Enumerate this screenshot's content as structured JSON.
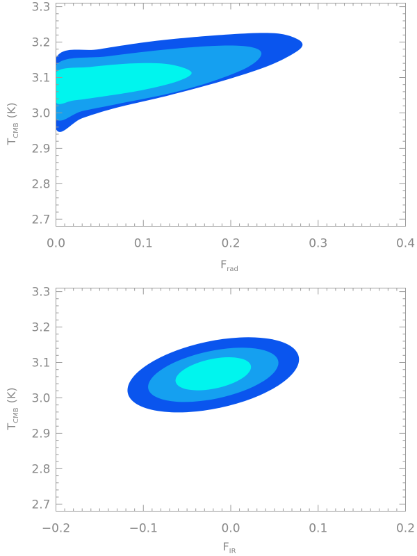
{
  "colors": {
    "level_outer": "#0a55ee",
    "level_middle": "#15a0f0",
    "level_inner": "#00f5ee",
    "axis": "#9a9a9a",
    "text": "#888888"
  },
  "chart_data": [
    {
      "type": "contour",
      "xlabel": {
        "main": "F",
        "sub": "rad"
      },
      "ylabel": {
        "main": "T",
        "sub": "CMB",
        "unit": "(K)"
      },
      "xlim": [
        0.0,
        0.4
      ],
      "ylim": [
        2.68,
        3.31
      ],
      "x_ticks": [
        "0.0",
        "0.1",
        "0.2",
        "0.3",
        "0.4"
      ],
      "y_ticks": [
        "2.7",
        "2.8",
        "2.9",
        "3.0",
        "3.1",
        "3.2",
        "3.3"
      ],
      "contours": [
        {
          "level": "outer",
          "color": "#0a55ee",
          "points": [
            [
              0.0,
              3.155
            ],
            [
              0.05,
              3.18
            ],
            [
              0.12,
              3.205
            ],
            [
              0.2,
              3.222
            ],
            [
              0.25,
              3.225
            ],
            [
              0.275,
              3.21
            ],
            [
              0.282,
              3.19
            ],
            [
              0.27,
              3.165
            ],
            [
              0.24,
              3.13
            ],
            [
              0.19,
              3.09
            ],
            [
              0.13,
              3.05
            ],
            [
              0.07,
              3.015
            ],
            [
              0.03,
              2.985
            ],
            [
              0.0,
              2.955
            ]
          ]
        },
        {
          "level": "middle",
          "color": "#15a0f0",
          "points": [
            [
              0.0,
              3.135
            ],
            [
              0.06,
              3.16
            ],
            [
              0.13,
              3.18
            ],
            [
              0.19,
              3.19
            ],
            [
              0.225,
              3.185
            ],
            [
              0.235,
              3.165
            ],
            [
              0.22,
              3.13
            ],
            [
              0.18,
              3.09
            ],
            [
              0.13,
              3.055
            ],
            [
              0.07,
              3.025
            ],
            [
              0.03,
              3.005
            ],
            [
              0.0,
              2.985
            ]
          ]
        },
        {
          "level": "inner",
          "color": "#00f5ee",
          "points": [
            [
              0.0,
              3.115
            ],
            [
              0.04,
              3.13
            ],
            [
              0.09,
              3.14
            ],
            [
              0.13,
              3.137
            ],
            [
              0.155,
              3.115
            ],
            [
              0.14,
              3.09
            ],
            [
              0.1,
              3.065
            ],
            [
              0.05,
              3.045
            ],
            [
              0.02,
              3.035
            ],
            [
              0.0,
              3.03
            ]
          ]
        }
      ]
    },
    {
      "type": "contour",
      "xlabel": {
        "main": "F",
        "sub": "IR"
      },
      "ylabel": {
        "main": "T",
        "sub": "CMB",
        "unit": "(K)"
      },
      "xlim": [
        -0.2,
        0.2
      ],
      "ylim": [
        2.68,
        3.31
      ],
      "x_ticks": [
        "−0.2",
        "−0.1",
        "0.0",
        "0.1",
        "0.2"
      ],
      "y_ticks": [
        "2.7",
        "2.8",
        "2.9",
        "3.0",
        "3.1",
        "3.2",
        "3.3"
      ],
      "contours": [
        {
          "level": "outer",
          "color": "#0a55ee",
          "ellipse": {
            "cx": -0.02,
            "cy": 3.065,
            "rx": 0.1,
            "ry": 0.1,
            "rot": -12
          }
        },
        {
          "level": "middle",
          "color": "#15a0f0",
          "ellipse": {
            "cx": -0.02,
            "cy": 3.065,
            "rx": 0.076,
            "ry": 0.071,
            "rot": -12
          }
        },
        {
          "level": "inner",
          "color": "#00f5ee",
          "ellipse": {
            "cx": -0.02,
            "cy": 3.068,
            "rx": 0.044,
            "ry": 0.044,
            "rot": -12
          }
        }
      ]
    }
  ]
}
